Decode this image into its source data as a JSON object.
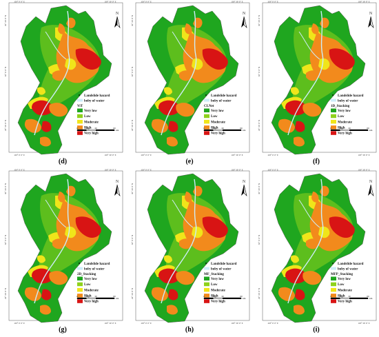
{
  "map": {
    "north_label": "N",
    "lon_left": "103° 0′ 0″ E",
    "lon_right": "103° 30′ 0″ E",
    "lat_top": "30° 30′ 0″ N",
    "lat_mid": "30° 0′ 0″ N",
    "lat_bottom": "29° 30′ 0″ N",
    "legend": {
      "hazard_label": "Landslide hazard",
      "water_label": "boby of water",
      "classes": [
        {
          "label": "Very low",
          "color": "#1fa61f"
        },
        {
          "label": "Low",
          "color": "#8fd21c"
        },
        {
          "label": "Moderate",
          "color": "#f0e51a"
        },
        {
          "label": "High",
          "color": "#f28a1c"
        },
        {
          "label": "Very high",
          "color": "#d81414"
        }
      ],
      "water_color": "#cdeefa",
      "scale_ticks": [
        "0",
        "15",
        "30",
        "60"
      ],
      "scale_unit": "km"
    }
  },
  "panels": [
    {
      "model": "ViT",
      "caption": "(d)"
    },
    {
      "model": "CLNet",
      "caption": "(e)"
    },
    {
      "model": "1D_Stacking",
      "caption": "(f)"
    },
    {
      "model": "2D_Stacking",
      "caption": "(g)"
    },
    {
      "model": "MF_Stacking",
      "caption": "(h)"
    },
    {
      "model": "MFP_Stacking",
      "caption": "(i)"
    }
  ]
}
